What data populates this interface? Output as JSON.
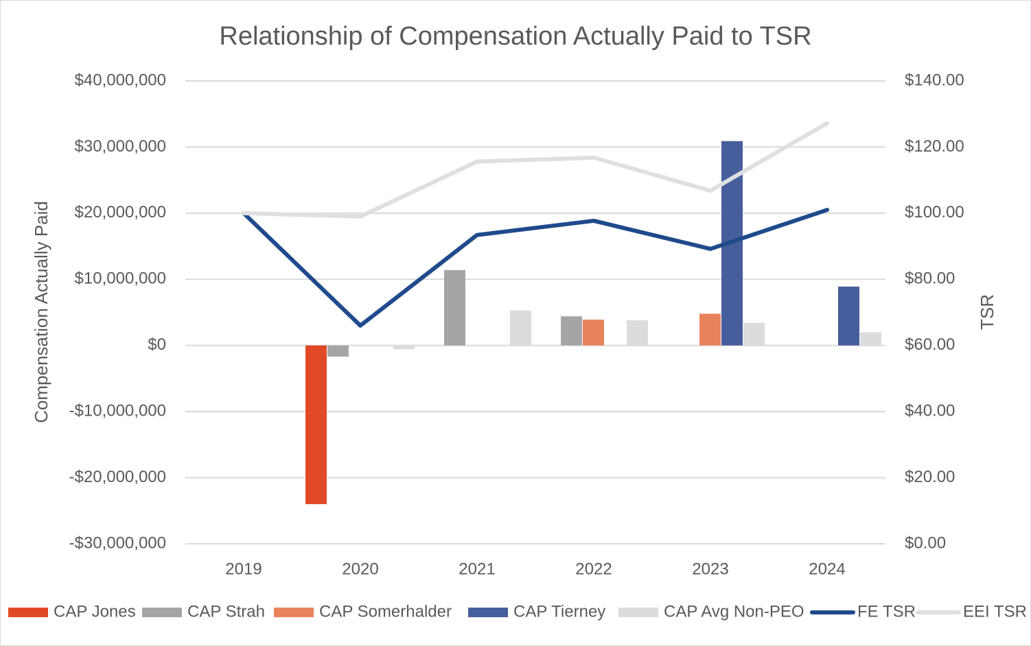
{
  "chart_data": {
    "type": "bar",
    "title": "Relationship of Compensation Actually Paid to TSR",
    "y_label": "Compensation Actually Paid",
    "y2_label": "TSR",
    "categories": [
      "2019",
      "2020",
      "2021",
      "2022",
      "2023",
      "2024"
    ],
    "series": [
      {
        "name": "CAP Jones",
        "type": "bar",
        "color": "#e04a26",
        "values": [
          null,
          -24000000,
          null,
          null,
          null,
          null
        ]
      },
      {
        "name": "CAP Strah",
        "type": "bar",
        "color": "#a5a5a7",
        "values": [
          null,
          -1700000,
          11400000,
          4400000,
          null,
          null
        ]
      },
      {
        "name": "CAP Somerhalder",
        "type": "bar",
        "color": "#e8825a",
        "values": [
          null,
          null,
          null,
          3900000,
          4800000,
          null
        ]
      },
      {
        "name": "CAP Tierney",
        "type": "bar",
        "color": "#475e9c",
        "values": [
          null,
          null,
          null,
          null,
          30900000,
          8900000
        ]
      },
      {
        "name": "CAP Avg Non-PEO",
        "type": "bar",
        "color": "#dbdcde",
        "values": [
          null,
          -600000,
          5300000,
          3800000,
          3400000,
          2000000
        ]
      },
      {
        "name": "FE TSR",
        "type": "line",
        "axis": "y2",
        "color": "#1f4a8c",
        "values": [
          100,
          66,
          93.4,
          97.7,
          89.2,
          101
        ]
      },
      {
        "name": "EEI TSR",
        "type": "line",
        "axis": "y2",
        "color": "#dedfe0",
        "values": [
          100,
          99,
          115.6,
          116.8,
          106.8,
          127.2
        ]
      }
    ],
    "ylim": [
      -30000000,
      40000000
    ],
    "yticks": [
      {
        "value": -30000000,
        "label": "-$30,000,000"
      },
      {
        "value": -20000000,
        "label": "-$20,000,000"
      },
      {
        "value": -10000000,
        "label": "-$10,000,000"
      },
      {
        "value": 0,
        "label": "$0"
      },
      {
        "value": 10000000,
        "label": "$10,000,000"
      },
      {
        "value": 20000000,
        "label": "$20,000,000"
      },
      {
        "value": 30000000,
        "label": "$30,000,000"
      },
      {
        "value": 40000000,
        "label": "$40,000,000"
      }
    ],
    "y2lim": [
      0,
      140
    ],
    "y2ticks": [
      {
        "value": 0,
        "label": "$0.00"
      },
      {
        "value": 20,
        "label": "$20.00"
      },
      {
        "value": 40,
        "label": "$40.00"
      },
      {
        "value": 60,
        "label": "$60.00"
      },
      {
        "value": 80,
        "label": "$80.00"
      },
      {
        "value": 100,
        "label": "$100.00"
      },
      {
        "value": 120,
        "label": "$120.00"
      },
      {
        "value": 140,
        "label": "$140.00"
      }
    ],
    "grid": true,
    "legend": "bottom"
  }
}
